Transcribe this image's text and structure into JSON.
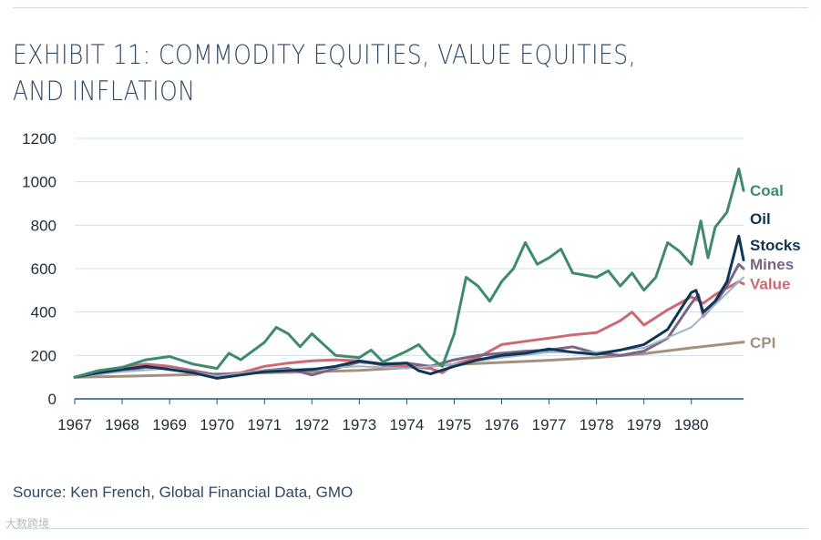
{
  "title": "EXHIBIT 11: COMMODITY EQUITIES, VALUE EQUITIES, AND INFLATION",
  "source": "Source: Ken French, Global Financial Data, GMO",
  "watermark": "大数跨境",
  "chart_data": {
    "type": "line",
    "title": "EXHIBIT 11: COMMODITY EQUITIES, VALUE EQUITIES, AND INFLATION",
    "xlabel": "",
    "ylabel": "",
    "xlim": [
      1967,
      1981.1
    ],
    "ylim": [
      0,
      1200
    ],
    "y_ticks": [
      "0",
      "200",
      "400",
      "600",
      "800",
      "1000",
      "1200"
    ],
    "x_ticks": [
      "1967",
      "1968",
      "1969",
      "1970",
      "1971",
      "1972",
      "1973",
      "1974",
      "1975",
      "1976",
      "1977",
      "1978",
      "1979",
      "1980"
    ],
    "grid": true,
    "legend": "inline labels at right end of each series",
    "series": [
      {
        "name": "CPI",
        "color": "#a4917d",
        "x": [
          1967,
          1968,
          1969,
          1970,
          1971,
          1972,
          1973,
          1974,
          1975,
          1976,
          1977,
          1978,
          1979,
          1980,
          1981.1
        ],
        "y": [
          100,
          104,
          109,
          115,
          120,
          125,
          131,
          144,
          158,
          168,
          178,
          190,
          208,
          235,
          262
        ]
      },
      {
        "name": "Value",
        "color": "#c96a75",
        "x": [
          1967,
          1967.5,
          1968,
          1968.5,
          1969,
          1969.5,
          1970,
          1970.5,
          1971,
          1971.5,
          1972,
          1972.5,
          1973,
          1973.5,
          1974,
          1974.5,
          1974.75,
          1975,
          1975.5,
          1976,
          1976.5,
          1977,
          1977.5,
          1978,
          1978.5,
          1978.75,
          1979,
          1979.5,
          1980,
          1980.25,
          1980.5,
          1981,
          1981.1
        ],
        "y": [
          100,
          125,
          145,
          160,
          150,
          130,
          110,
          120,
          150,
          165,
          175,
          180,
          175,
          155,
          150,
          140,
          120,
          160,
          190,
          250,
          265,
          280,
          295,
          305,
          360,
          400,
          340,
          410,
          470,
          440,
          480,
          540,
          530
        ]
      },
      {
        "name": "Mines",
        "color": "#7b6485",
        "x": [
          1967,
          1967.5,
          1968,
          1968.5,
          1969,
          1969.5,
          1970,
          1970.5,
          1971,
          1971.5,
          1972,
          1972.5,
          1973,
          1973.5,
          1974,
          1974.5,
          1975,
          1975.5,
          1976,
          1976.5,
          1977,
          1977.5,
          1978,
          1978.5,
          1979,
          1979.5,
          1980,
          1980.15,
          1980.25,
          1980.5,
          1980.75,
          1981,
          1981.1
        ],
        "y": [
          100,
          115,
          130,
          145,
          140,
          125,
          110,
          115,
          130,
          140,
          110,
          140,
          170,
          160,
          165,
          150,
          180,
          200,
          210,
          220,
          225,
          240,
          210,
          200,
          220,
          280,
          440,
          480,
          380,
          440,
          520,
          620,
          600
        ]
      },
      {
        "name": "Stocks",
        "color": "#9fb4c7",
        "x": [
          1967,
          1968,
          1969,
          1970,
          1971,
          1972,
          1973,
          1974,
          1975,
          1976,
          1977,
          1978,
          1979,
          1980,
          1981.1
        ],
        "y": [
          100,
          125,
          140,
          105,
          130,
          140,
          150,
          140,
          160,
          190,
          215,
          215,
          235,
          330,
          560
        ]
      },
      {
        "name": "Oil",
        "color": "#0f3557",
        "x": [
          1967,
          1967.5,
          1968,
          1968.5,
          1969,
          1969.5,
          1970,
          1970.5,
          1971,
          1971.5,
          1972,
          1972.5,
          1973,
          1973.5,
          1974,
          1974.25,
          1974.5,
          1975,
          1975.5,
          1976,
          1976.5,
          1977,
          1977.5,
          1978,
          1978.5,
          1979,
          1979.5,
          1980,
          1980.1,
          1980.25,
          1980.5,
          1980.75,
          1981,
          1981.1
        ],
        "y": [
          100,
          120,
          135,
          150,
          135,
          120,
          95,
          110,
          125,
          130,
          135,
          150,
          175,
          160,
          165,
          130,
          115,
          150,
          180,
          200,
          210,
          230,
          215,
          205,
          225,
          250,
          320,
          490,
          500,
          400,
          450,
          540,
          750,
          640
        ]
      },
      {
        "name": "Coal",
        "color": "#3f8a6f",
        "x": [
          1967,
          1967.5,
          1968,
          1968.5,
          1969,
          1969.5,
          1970,
          1970.25,
          1970.5,
          1971,
          1971.25,
          1971.5,
          1971.75,
          1972,
          1972.5,
          1973,
          1973.25,
          1973.5,
          1974,
          1974.25,
          1974.5,
          1974.75,
          1975,
          1975.25,
          1975.5,
          1975.75,
          1976,
          1976.25,
          1976.5,
          1976.75,
          1977,
          1977.25,
          1977.5,
          1978,
          1978.25,
          1978.5,
          1978.75,
          1979,
          1979.25,
          1979.5,
          1979.75,
          1980,
          1980.2,
          1980.35,
          1980.5,
          1980.75,
          1981,
          1981.1
        ],
        "y": [
          100,
          130,
          145,
          180,
          195,
          160,
          140,
          210,
          180,
          260,
          330,
          300,
          240,
          300,
          200,
          190,
          225,
          170,
          220,
          250,
          190,
          150,
          300,
          560,
          520,
          450,
          540,
          600,
          720,
          620,
          650,
          690,
          580,
          560,
          590,
          520,
          580,
          500,
          560,
          720,
          680,
          620,
          820,
          650,
          790,
          860,
          1060,
          960
        ]
      }
    ],
    "end_labels": [
      "Coal",
      "Oil",
      "Stocks",
      "Mines",
      "Value",
      "CPI"
    ]
  }
}
